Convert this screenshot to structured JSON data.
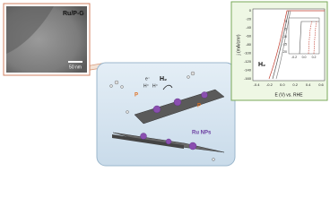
{
  "tem": {
    "label": "Ru/P-G",
    "scale_bar": "50 nm"
  },
  "scheme": {
    "h2": "H₂",
    "electron": "e⁻",
    "proton_1": "H⁺",
    "proton_2": "H⁺",
    "p_1": "P",
    "p_2": "P",
    "ru": "Ru NPs"
  },
  "plot": {
    "ylabel": "j (mA/cm²)",
    "xlabel": "E (V) vs. RHE",
    "product": "H₂",
    "yticks": [
      "0",
      "-20",
      "-40",
      "-60",
      "-80",
      "-100",
      "-120",
      "-140",
      "-160"
    ],
    "xticks": [
      "-0.4",
      "-0.2",
      "0.0",
      "0.2",
      "0.4",
      "0.6"
    ],
    "inset_yticks": [
      "0",
      "-5",
      "-10",
      "-15",
      "-20"
    ],
    "inset_xticks": [
      "-0.2",
      "0.0",
      "0.2"
    ]
  }
}
